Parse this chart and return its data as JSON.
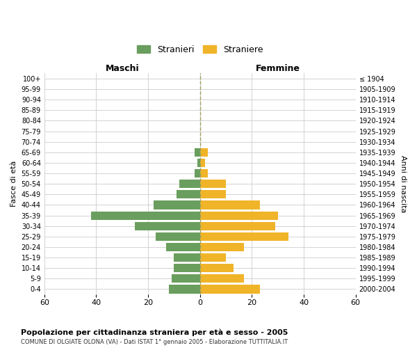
{
  "age_groups": [
    "0-4",
    "5-9",
    "10-14",
    "15-19",
    "20-24",
    "25-29",
    "30-34",
    "35-39",
    "40-44",
    "45-49",
    "50-54",
    "55-59",
    "60-64",
    "65-69",
    "70-74",
    "75-79",
    "80-84",
    "85-89",
    "90-94",
    "95-99",
    "100+"
  ],
  "birth_years": [
    "2000-2004",
    "1995-1999",
    "1990-1994",
    "1985-1989",
    "1980-1984",
    "1975-1979",
    "1970-1974",
    "1965-1969",
    "1960-1964",
    "1955-1959",
    "1950-1954",
    "1945-1949",
    "1940-1944",
    "1935-1939",
    "1930-1934",
    "1925-1929",
    "1920-1924",
    "1915-1919",
    "1910-1914",
    "1905-1909",
    "≤ 1904"
  ],
  "males": [
    12,
    11,
    10,
    10,
    13,
    17,
    25,
    42,
    18,
    9,
    8,
    2,
    1,
    2,
    0,
    0,
    0,
    0,
    0,
    0,
    0
  ],
  "females": [
    23,
    17,
    13,
    10,
    17,
    34,
    29,
    30,
    23,
    10,
    10,
    3,
    2,
    3,
    0,
    0,
    0,
    0,
    0,
    0,
    0
  ],
  "male_color": "#6a9e5e",
  "female_color": "#f0b429",
  "background_color": "#ffffff",
  "grid_color": "#cccccc",
  "title": "Popolazione per cittadinanza straniera per età e sesso - 2005",
  "subtitle": "COMUNE DI OLGIATE OLONA (VA) - Dati ISTAT 1° gennaio 2005 - Elaborazione TUTTITALIA.IT",
  "ylabel_left": "Fasce di età",
  "ylabel_right": "Anni di nascita",
  "xlabel_left": "Maschi",
  "xlabel_right": "Femmine",
  "legend_male": "Stranieri",
  "legend_female": "Straniere",
  "xlim": 60,
  "center_line_color": "#a0a060"
}
